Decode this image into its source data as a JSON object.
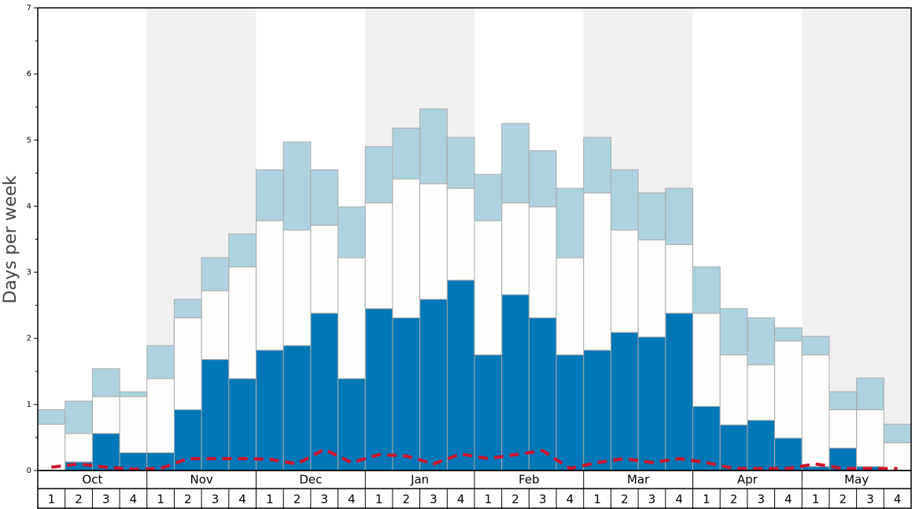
{
  "chart_data": {
    "type": "bar",
    "stacked": true,
    "y_label": "Days per week",
    "months": [
      "Oct",
      "Nov",
      "Dec",
      "Jan",
      "Feb",
      "Mar",
      "Apr",
      "May"
    ],
    "categories": [
      "1",
      "2",
      "3",
      "4",
      "1",
      "2",
      "3",
      "4",
      "1",
      "2",
      "3",
      "4",
      "1",
      "2",
      "3",
      "4",
      "1",
      "2",
      "3",
      "4",
      "1",
      "2",
      "3",
      "4",
      "1",
      "2",
      "3",
      "4",
      "1",
      "2",
      "3",
      "4"
    ],
    "series": [
      {
        "color": "#0077b6",
        "values": [
          0,
          0.13,
          0.56,
          0.27,
          0.27,
          0.92,
          1.68,
          1.39,
          1.82,
          1.89,
          2.38,
          1.39,
          2.45,
          2.31,
          2.59,
          2.88,
          1.75,
          2.66,
          2.31,
          1.75,
          1.82,
          2.09,
          2.02,
          2.38,
          0.97,
          0.69,
          0.76,
          0.49,
          0.06,
          0.34,
          0.06,
          0
        ]
      },
      {
        "color": "#fdfdfb",
        "values": [
          0.7,
          0.43,
          0.56,
          0.85,
          1.12,
          1.39,
          1.04,
          1.69,
          1.96,
          1.75,
          1.33,
          1.83,
          1.6,
          2.1,
          1.75,
          1.39,
          2.03,
          1.39,
          1.68,
          1.47,
          2.38,
          1.55,
          1.47,
          1.04,
          1.41,
          1.06,
          0.84,
          1.47,
          1.69,
          0.58,
          0.86,
          0.42
        ]
      },
      {
        "color": "#aed3e0",
        "values": [
          0.22,
          0.49,
          0.42,
          0.07,
          0.5,
          0.28,
          0.5,
          0.5,
          0.77,
          1.33,
          0.84,
          0.77,
          0.85,
          0.77,
          1.13,
          0.77,
          0.7,
          1.2,
          0.85,
          1.05,
          0.84,
          0.91,
          0.71,
          0.85,
          0.7,
          0.7,
          0.71,
          0.2,
          0.28,
          0.27,
          0.48,
          0.28
        ]
      },
      {
        "type": "line",
        "color": "#d0142c",
        "dashed": true,
        "values": [
          0.05,
          0.1,
          0.05,
          0.02,
          0.03,
          0.18,
          0.18,
          0.18,
          0.17,
          0.1,
          0.32,
          0.12,
          0.24,
          0.22,
          0.1,
          0.25,
          0.18,
          0.24,
          0.3,
          0.03,
          0.12,
          0.18,
          0.12,
          0.18,
          0.12,
          0.03,
          0.03,
          0.03,
          0.1,
          0.03,
          0.03,
          0.03
        ]
      }
    ],
    "ylim": [
      0,
      7
    ],
    "yticks": [
      0,
      1,
      2,
      3,
      4,
      5,
      6,
      7
    ],
    "minor_yticks": [
      0.5,
      1.5,
      2.5,
      3.5,
      4.5,
      5.5,
      6.5
    ]
  }
}
